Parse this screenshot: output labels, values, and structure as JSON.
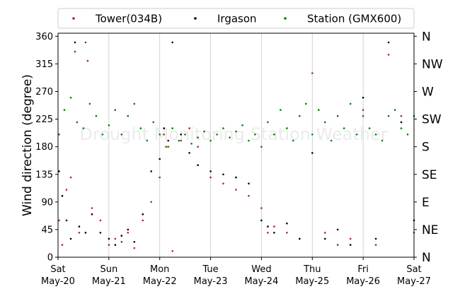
{
  "chart_data": {
    "type": "scatter",
    "title": "",
    "ylabel": "Wind direction (degree)",
    "ylim": [
      0,
      365
    ],
    "y_ticks": [
      0,
      45,
      90,
      135,
      180,
      225,
      270,
      315,
      360
    ],
    "y_ticks_right": [
      "N",
      "NE",
      "E",
      "SE",
      "S",
      "SW",
      "W",
      "NW",
      "N"
    ],
    "x_range": [
      "2017-05-20",
      "2017-05-27"
    ],
    "x_tick_labels": [
      {
        "day": "Sat",
        "date": "May-20"
      },
      {
        "day": "Sun",
        "date": "May-21"
      },
      {
        "day": "Mon",
        "date": "May-22"
      },
      {
        "day": "Tue",
        "date": "May-23"
      },
      {
        "day": "Wed",
        "date": "May-24"
      },
      {
        "day": "Thu",
        "date": "May-25"
      },
      {
        "day": "Fri",
        "date": "May-26"
      },
      {
        "day": "Sat",
        "date": "May-27"
      }
    ],
    "grid": "vertical",
    "legend_position": "top",
    "watermark": "Drought Monitoring Station Weather",
    "series": [
      {
        "name": "Tower(034B)",
        "color": "#a52a2a",
        "points": [
          [
            "2017-05-20T00:30",
            60
          ],
          [
            "2017-05-20T02:00",
            20
          ],
          [
            "2017-05-20T04:00",
            110
          ],
          [
            "2017-05-20T06:00",
            130
          ],
          [
            "2017-05-20T08:00",
            335
          ],
          [
            "2017-05-20T10:00",
            40
          ],
          [
            "2017-05-20T13:00",
            350
          ],
          [
            "2017-05-20T14:00",
            320
          ],
          [
            "2017-05-20T16:00",
            80
          ],
          [
            "2017-05-20T20:00",
            60
          ],
          [
            "2017-05-21T00:00",
            20
          ],
          [
            "2017-05-21T03:00",
            30
          ],
          [
            "2017-05-21T06:00",
            25
          ],
          [
            "2017-05-21T09:00",
            40
          ],
          [
            "2017-05-21T12:00",
            15
          ],
          [
            "2017-05-21T16:00",
            60
          ],
          [
            "2017-05-21T20:00",
            90
          ],
          [
            "2017-05-22T00:00",
            130
          ],
          [
            "2017-05-22T02:00",
            200
          ],
          [
            "2017-05-22T04:00",
            180
          ],
          [
            "2017-05-22T06:00",
            10
          ],
          [
            "2017-05-22T10:00",
            190
          ],
          [
            "2017-05-22T14:00",
            210
          ],
          [
            "2017-05-22T18:00",
            180
          ],
          [
            "2017-05-23T00:00",
            130
          ],
          [
            "2017-05-23T06:00",
            120
          ],
          [
            "2017-05-23T12:00",
            110
          ],
          [
            "2017-05-23T18:00",
            100
          ],
          [
            "2017-05-24T00:00",
            80
          ],
          [
            "2017-05-24T03:00",
            40
          ],
          [
            "2017-05-24T06:00",
            50
          ],
          [
            "2017-05-24T12:00",
            40
          ],
          [
            "2017-05-24T18:00",
            30
          ],
          [
            "2017-05-25T00:00",
            300
          ],
          [
            "2017-05-25T06:00",
            40
          ],
          [
            "2017-05-25T12:00",
            20
          ],
          [
            "2017-05-25T18:00",
            30
          ],
          [
            "2017-05-26T00:00",
            240
          ],
          [
            "2017-05-26T06:00",
            20
          ],
          [
            "2017-05-26T12:00",
            330
          ],
          [
            "2017-05-26T18:00",
            230
          ],
          [
            "2017-05-27T00:00",
            40
          ]
        ]
      },
      {
        "name": "Irgason",
        "color": "#000000",
        "points": [
          [
            "2017-05-20T00:30",
            140
          ],
          [
            "2017-05-20T02:00",
            100
          ],
          [
            "2017-05-20T04:00",
            60
          ],
          [
            "2017-05-20T06:00",
            30
          ],
          [
            "2017-05-20T08:00",
            350
          ],
          [
            "2017-05-20T10:00",
            50
          ],
          [
            "2017-05-20T13:00",
            40
          ],
          [
            "2017-05-20T16:00",
            70
          ],
          [
            "2017-05-20T20:00",
            40
          ],
          [
            "2017-05-21T00:00",
            30
          ],
          [
            "2017-05-21T03:00",
            20
          ],
          [
            "2017-05-21T06:00",
            35
          ],
          [
            "2017-05-21T09:00",
            45
          ],
          [
            "2017-05-21T12:00",
            25
          ],
          [
            "2017-05-21T16:00",
            70
          ],
          [
            "2017-05-21T20:00",
            140
          ],
          [
            "2017-05-22T00:00",
            160
          ],
          [
            "2017-05-22T02:00",
            210
          ],
          [
            "2017-05-22T04:00",
            190
          ],
          [
            "2017-05-22T06:00",
            350
          ],
          [
            "2017-05-22T10:00",
            200
          ],
          [
            "2017-05-22T14:00",
            170
          ],
          [
            "2017-05-22T18:00",
            150
          ],
          [
            "2017-05-23T00:00",
            140
          ],
          [
            "2017-05-23T06:00",
            135
          ],
          [
            "2017-05-23T12:00",
            130
          ],
          [
            "2017-05-23T18:00",
            120
          ],
          [
            "2017-05-24T00:00",
            60
          ],
          [
            "2017-05-24T03:00",
            50
          ],
          [
            "2017-05-24T06:00",
            40
          ],
          [
            "2017-05-24T12:00",
            55
          ],
          [
            "2017-05-24T18:00",
            30
          ],
          [
            "2017-05-25T00:00",
            170
          ],
          [
            "2017-05-25T06:00",
            30
          ],
          [
            "2017-05-25T12:00",
            45
          ],
          [
            "2017-05-25T18:00",
            20
          ],
          [
            "2017-05-26T00:00",
            260
          ],
          [
            "2017-05-26T06:00",
            30
          ],
          [
            "2017-05-26T12:00",
            350
          ],
          [
            "2017-05-26T18:00",
            220
          ],
          [
            "2017-05-27T00:00",
            60
          ]
        ]
      },
      {
        "name": "Station (GMX600)",
        "color": "#008000",
        "points": [
          [
            "2017-05-20T00:30",
            200
          ],
          [
            "2017-05-20T03:00",
            240
          ],
          [
            "2017-05-20T06:00",
            260
          ],
          [
            "2017-05-20T09:00",
            220
          ],
          [
            "2017-05-20T12:00",
            210
          ],
          [
            "2017-05-20T15:00",
            250
          ],
          [
            "2017-05-20T18:00",
            230
          ],
          [
            "2017-05-20T21:00",
            200
          ],
          [
            "2017-05-21T00:00",
            215
          ],
          [
            "2017-05-21T03:00",
            240
          ],
          [
            "2017-05-21T06:00",
            200
          ],
          [
            "2017-05-21T09:00",
            230
          ],
          [
            "2017-05-21T12:00",
            250
          ],
          [
            "2017-05-21T15:00",
            210
          ],
          [
            "2017-05-21T18:00",
            190
          ],
          [
            "2017-05-21T21:00",
            220
          ],
          [
            "2017-05-22T00:00",
            200
          ],
          [
            "2017-05-22T03:00",
            180
          ],
          [
            "2017-05-22T06:00",
            210
          ],
          [
            "2017-05-22T09:00",
            190
          ],
          [
            "2017-05-22T12:00",
            200
          ],
          [
            "2017-05-22T15:00",
            185
          ],
          [
            "2017-05-22T18:00",
            195
          ],
          [
            "2017-05-22T21:00",
            205
          ],
          [
            "2017-05-23T00:00",
            190
          ],
          [
            "2017-05-23T03:00",
            200
          ],
          [
            "2017-05-23T06:00",
            210
          ],
          [
            "2017-05-23T09:00",
            195
          ],
          [
            "2017-05-23T12:00",
            205
          ],
          [
            "2017-05-23T15:00",
            215
          ],
          [
            "2017-05-23T18:00",
            190
          ],
          [
            "2017-05-23T21:00",
            200
          ],
          [
            "2017-05-24T00:00",
            180
          ],
          [
            "2017-05-24T03:00",
            220
          ],
          [
            "2017-05-24T06:00",
            200
          ],
          [
            "2017-05-24T09:00",
            240
          ],
          [
            "2017-05-24T12:00",
            210
          ],
          [
            "2017-05-24T15:00",
            190
          ],
          [
            "2017-05-24T18:00",
            230
          ],
          [
            "2017-05-24T21:00",
            250
          ],
          [
            "2017-05-25T00:00",
            200
          ],
          [
            "2017-05-25T03:00",
            240
          ],
          [
            "2017-05-25T06:00",
            220
          ],
          [
            "2017-05-25T09:00",
            190
          ],
          [
            "2017-05-25T12:00",
            230
          ],
          [
            "2017-05-25T15:00",
            210
          ],
          [
            "2017-05-25T18:00",
            250
          ],
          [
            "2017-05-25T21:00",
            200
          ],
          [
            "2017-05-26T00:00",
            230
          ],
          [
            "2017-05-26T03:00",
            210
          ],
          [
            "2017-05-26T06:00",
            200
          ],
          [
            "2017-05-26T09:00",
            190
          ],
          [
            "2017-05-26T12:00",
            230
          ],
          [
            "2017-05-26T15:00",
            240
          ],
          [
            "2017-05-26T18:00",
            210
          ],
          [
            "2017-05-26T21:00",
            200
          ],
          [
            "2017-05-27T00:00",
            230
          ]
        ]
      }
    ]
  }
}
